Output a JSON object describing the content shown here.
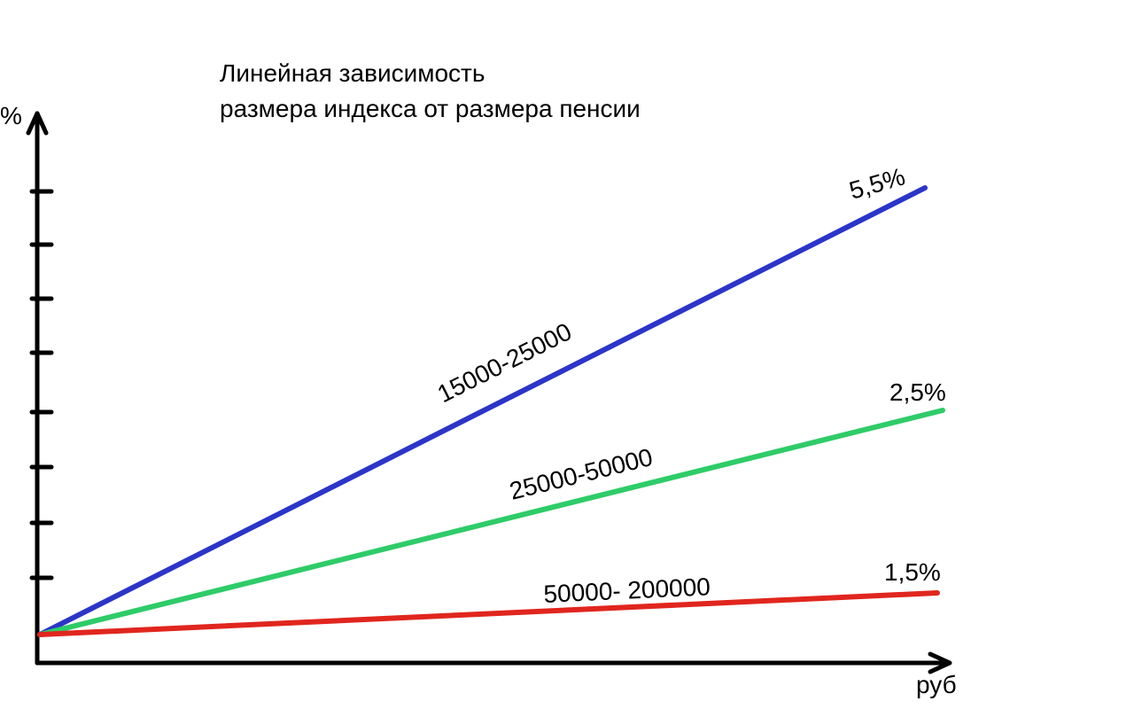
{
  "chart_data": {
    "type": "line",
    "title_lines": [
      "Линейная зависимость",
      "размера индекса от размера пенсии"
    ],
    "ylabel": "%",
    "xlabel": "руб",
    "y_tick_count": 8,
    "colors": {
      "axis": "#000000",
      "text": "#000000"
    },
    "series": [
      {
        "name": "15000-25000",
        "end_label": "5,5%",
        "end_value": 5.5,
        "color": "#2b35c7"
      },
      {
        "name": "25000-50000",
        "end_label": "2,5%",
        "end_value": 2.5,
        "color": "#2ecc68"
      },
      {
        "name": "50000- 200000",
        "end_label": "1,5%",
        "end_value": 1.5,
        "color": "#e0261e"
      }
    ]
  }
}
